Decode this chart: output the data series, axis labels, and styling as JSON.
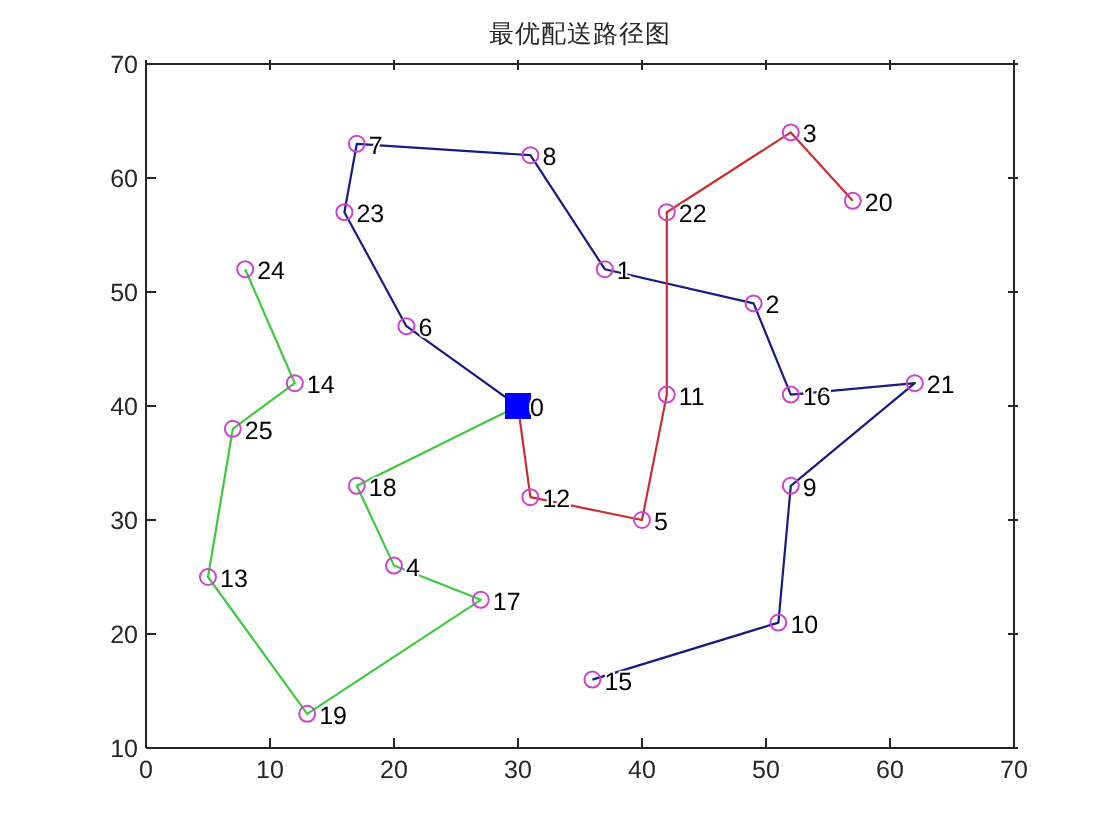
{
  "chart_data": {
    "type": "line",
    "title": "最优配送路径图",
    "xlim": [
      0,
      70
    ],
    "ylim": [
      10,
      70
    ],
    "xticks": [
      0,
      10,
      20,
      30,
      40,
      50,
      60,
      70
    ],
    "yticks": [
      10,
      20,
      30,
      40,
      50,
      60,
      70
    ],
    "grid": false,
    "series": [
      {
        "color": "#1a1a80",
        "marker": "none",
        "x": [
          30,
          21,
          16,
          17,
          31,
          37,
          49,
          52,
          62,
          52,
          51,
          36
        ],
        "values": [
          40,
          47,
          57,
          63,
          62,
          52,
          49,
          41,
          42,
          33,
          21,
          16
        ]
      },
      {
        "color": "#c83030",
        "marker": "none",
        "x": [
          30,
          31,
          40,
          42,
          42,
          52,
          57
        ],
        "values": [
          40,
          32,
          30,
          41,
          57,
          64,
          58
        ]
      },
      {
        "color": "#40c840",
        "marker": "none",
        "x": [
          30,
          17,
          20,
          27,
          13,
          5,
          7,
          12,
          8
        ],
        "values": [
          40,
          33,
          26,
          23,
          13,
          25,
          38,
          42,
          52
        ]
      },
      {
        "type": "scatter",
        "color": "#cc44cc",
        "marker": "circle",
        "x": [
          37,
          49,
          52,
          20,
          40,
          21,
          17,
          31,
          52,
          51,
          42,
          31,
          5,
          12,
          36,
          52,
          27,
          17,
          13,
          57,
          62,
          42,
          16,
          8,
          7
        ],
        "values": [
          52,
          49,
          64,
          26,
          30,
          47,
          63,
          62,
          33,
          21,
          41,
          32,
          25,
          42,
          16,
          41,
          23,
          33,
          13,
          58,
          42,
          57,
          57,
          52,
          38
        ]
      },
      {
        "type": "scatter",
        "color": "#0000ff",
        "marker": "square",
        "x": [
          30
        ],
        "values": [
          40
        ]
      }
    ],
    "annotations": [
      {
        "text": "1",
        "x": 37,
        "y": 52
      },
      {
        "text": "0",
        "x": 30,
        "y": 40
      },
      {
        "text": "9",
        "x": 52,
        "y": 33
      },
      {
        "text": "2",
        "x": 49,
        "y": 49
      },
      {
        "text": "3",
        "x": 52,
        "y": 64
      },
      {
        "text": "4",
        "x": 20,
        "y": 26
      },
      {
        "text": "5",
        "x": 40,
        "y": 30
      },
      {
        "text": "6",
        "x": 21,
        "y": 47
      },
      {
        "text": "7",
        "x": 17,
        "y": 63
      },
      {
        "text": "8",
        "x": 31,
        "y": 62
      },
      {
        "text": "10",
        "x": 51,
        "y": 21
      },
      {
        "text": "11",
        "x": 42,
        "y": 41
      },
      {
        "text": "12",
        "x": 31,
        "y": 32
      },
      {
        "text": "13",
        "x": 5,
        "y": 25
      },
      {
        "text": "14",
        "x": 12,
        "y": 42
      },
      {
        "text": "15",
        "x": 36,
        "y": 16
      },
      {
        "text": "16",
        "x": 52,
        "y": 41
      },
      {
        "text": "17",
        "x": 27,
        "y": 23
      },
      {
        "text": "18",
        "x": 17,
        "y": 33
      },
      {
        "text": "19",
        "x": 13,
        "y": 13
      },
      {
        "text": "20",
        "x": 57,
        "y": 58
      },
      {
        "text": "21",
        "x": 62,
        "y": 42
      },
      {
        "text": "22",
        "x": 42,
        "y": 57
      },
      {
        "text": "23",
        "x": 16,
        "y": 57
      },
      {
        "text": "24",
        "x": 8,
        "y": 52
      },
      {
        "text": "25",
        "x": 7,
        "y": 38
      }
    ]
  }
}
